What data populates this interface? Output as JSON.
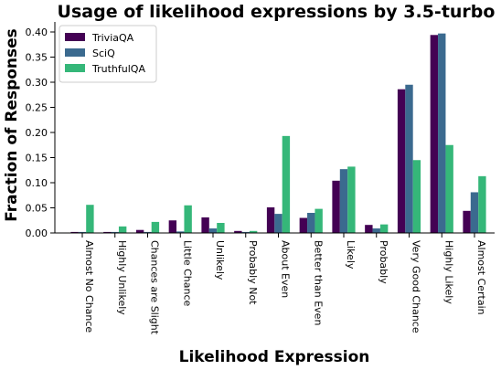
{
  "chart_data": {
    "type": "bar",
    "title": "Usage of likelihood expressions by 3.5-turbo",
    "xlabel": "Likelihood Expression",
    "ylabel": "Fraction of Responses",
    "ylim": [
      0,
      0.42
    ],
    "yticks": [
      "0.00",
      "0.05",
      "0.10",
      "0.15",
      "0.20",
      "0.25",
      "0.30",
      "0.35",
      "0.40"
    ],
    "legend_position": "top-left",
    "grid": false,
    "categories": [
      "Almost No Chance",
      "Highly Unlikely",
      "Chances are Slight",
      "Little Chance",
      "Unlikely",
      "Probably Not",
      "About Even",
      "Better than Even",
      "Likely",
      "Probably",
      "Very Good Chance",
      "Highly Likely",
      "Almost Certain"
    ],
    "series": [
      {
        "name": "TriviaQA",
        "color": "#440154",
        "values": [
          0.002,
          0.002,
          0.006,
          0.025,
          0.031,
          0.004,
          0.051,
          0.03,
          0.104,
          0.016,
          0.286,
          0.394,
          0.044
        ]
      },
      {
        "name": "SciQ",
        "color": "#3b6a8f",
        "values": [
          0.002,
          0.002,
          0.002,
          0.003,
          0.009,
          0.002,
          0.038,
          0.04,
          0.127,
          0.009,
          0.295,
          0.397,
          0.081
        ]
      },
      {
        "name": "TruthfulQA",
        "color": "#35b779",
        "values": [
          0.056,
          0.013,
          0.022,
          0.055,
          0.02,
          0.004,
          0.193,
          0.048,
          0.132,
          0.017,
          0.145,
          0.175,
          0.113
        ]
      }
    ]
  }
}
